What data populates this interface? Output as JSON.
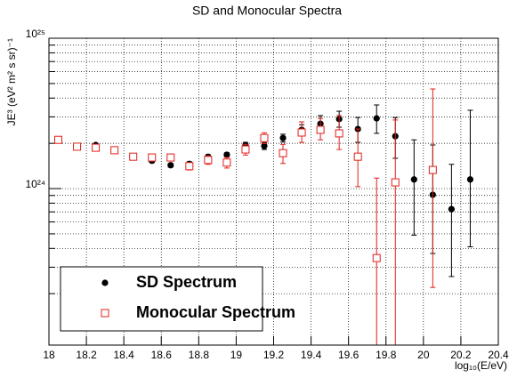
{
  "chart_data": {
    "type": "scatter",
    "title": "SD and Monocular Spectra",
    "x_label": "log₁₀(E/eV)",
    "y_label": "JE³ (eV² m² s sr)⁻¹",
    "log_y": true,
    "grid": true,
    "legend": "lower left",
    "xlim": [
      18,
      20.4
    ],
    "xticks": [
      18,
      18.2,
      18.4,
      18.6,
      18.8,
      19,
      19.2,
      19.4,
      19.6,
      19.8,
      20,
      20.2,
      20.4
    ],
    "ylim": [
      9.1e+22,
      1e+25
    ],
    "yticks": [
      {
        "value": 1e+24,
        "label": "10²⁴"
      },
      {
        "value": 1e+25,
        "label": "10²⁵"
      }
    ],
    "yminor_ticks": [
      2e+23,
      3e+23,
      4e+23,
      5e+23,
      6e+23,
      7e+23,
      8e+23,
      9e+23,
      2e+24,
      3e+24,
      4e+24,
      5e+24,
      6e+24,
      7e+24,
      8e+24,
      9e+24
    ],
    "series": [
      {
        "name": "SD Spectrum",
        "color": "#000000",
        "marker": "circle",
        "x": [
          18.25,
          18.35,
          18.45,
          18.55,
          18.65,
          18.75,
          18.85,
          18.95,
          19.05,
          19.15,
          19.25,
          19.35,
          19.45,
          19.55,
          19.65,
          19.75,
          19.85,
          19.95,
          20.05,
          20.15,
          20.25
        ],
        "values": [
          1.95e+24,
          1.8e+24,
          1.63e+24,
          1.53e+24,
          1.43e+24,
          1.46e+24,
          1.63e+24,
          1.68e+24,
          1.95e+24,
          1.92e+24,
          2.17e+24,
          2.46e+24,
          2.7e+24,
          2.9e+24,
          2.49e+24,
          2.93e+24,
          2.23e+24,
          1.15e+24,
          9.1e+23,
          7.3e+23,
          1.15e+24
        ],
        "err_low": [
          4e+22,
          4e+22,
          4e+22,
          4e+22,
          4e+22,
          5e+22,
          5e+22,
          5e+22,
          8e+22,
          1e+23,
          1.3e+23,
          2e+23,
          3.1e+23,
          3.4e+23,
          4.6e+23,
          6e+23,
          6.4e+23,
          6.6e+23,
          5.4e+23,
          4.7e+23,
          7.4e+23
        ],
        "err_high": [
          4e+22,
          4e+22,
          4e+22,
          4e+22,
          4e+22,
          5e+22,
          5e+22,
          5e+22,
          8e+22,
          1e+23,
          1.3e+23,
          2e+23,
          3.6e+23,
          3.7e+23,
          4.8e+23,
          6.7e+23,
          7.4e+23,
          9.6e+23,
          1.04e+24,
          7.2e+23,
          2.17e+24
        ]
      },
      {
        "name": "Monocular Spectrum",
        "color": "#e0201b",
        "marker": "square",
        "x": [
          18.05,
          18.15,
          18.25,
          18.35,
          18.45,
          18.55,
          18.65,
          18.75,
          18.85,
          18.95,
          19.05,
          19.15,
          19.25,
          19.35,
          19.45,
          19.55,
          19.65,
          19.75,
          19.85,
          20.05
        ],
        "values": [
          2.11e+24,
          1.9e+24,
          1.87e+24,
          1.8e+24,
          1.63e+24,
          1.61e+24,
          1.61e+24,
          1.41e+24,
          1.55e+24,
          1.49e+24,
          1.82e+24,
          2.17e+24,
          1.72e+24,
          2.36e+24,
          2.46e+24,
          2.33e+24,
          1.63e+24,
          3.45e+23,
          1.1e+24,
          1.33e+24
        ],
        "err_low": [
          5e+22,
          5e+22,
          5e+22,
          5e+22,
          5e+22,
          6e+22,
          8e+22,
          8e+22,
          1e+23,
          1.2e+23,
          1.5e+23,
          1.8e+23,
          2.5e+23,
          3.3e+23,
          3.5e+23,
          5.1e+23,
          6e+23,
          3e+23,
          1.02e+24,
          1.11e+24
        ],
        "err_high": [
          5e+22,
          5e+22,
          5e+22,
          5e+22,
          5e+22,
          6e+22,
          8e+22,
          8e+22,
          1e+23,
          1.2e+23,
          1.5e+23,
          1.8e+23,
          2.5e+23,
          4.2e+23,
          4.7e+23,
          7.3e+23,
          8.6e+23,
          8.3e+23,
          1.76e+24,
          3.27e+24
        ]
      }
    ]
  }
}
